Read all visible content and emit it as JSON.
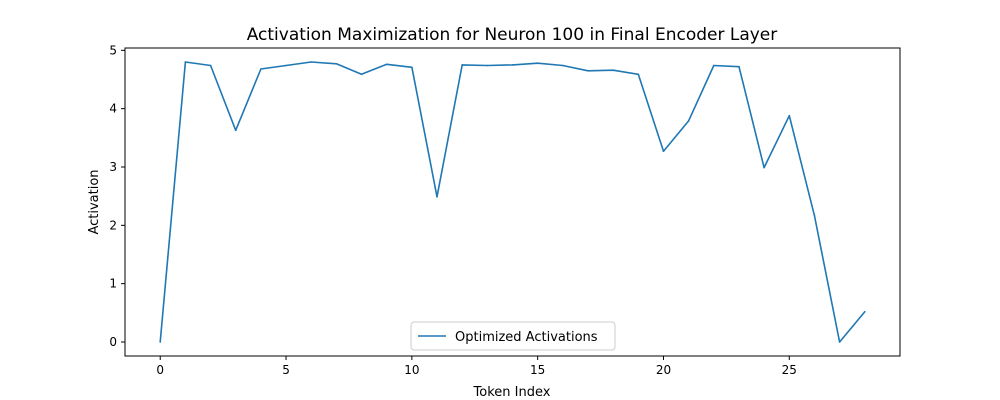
{
  "chart_data": {
    "type": "line",
    "title": "Activation Maximization for Neuron 100 in Final Encoder Layer",
    "xlabel": "Token Index",
    "ylabel": "Activation",
    "xlim": [
      -1.4,
      29.4
    ],
    "ylim": [
      -0.24,
      5.04
    ],
    "xticks": [
      0,
      5,
      10,
      15,
      20,
      25
    ],
    "yticks": [
      0,
      1,
      2,
      3,
      4,
      5
    ],
    "grid": false,
    "legend_position": "lower center",
    "series": [
      {
        "name": "Optimized Activations",
        "color": "#1f77b4",
        "x": [
          0,
          1,
          2,
          3,
          4,
          5,
          6,
          7,
          8,
          9,
          10,
          11,
          12,
          13,
          14,
          15,
          16,
          17,
          18,
          19,
          20,
          21,
          22,
          23,
          24,
          25,
          26,
          27,
          28
        ],
        "values": [
          0.0,
          4.8,
          4.74,
          3.63,
          4.68,
          4.74,
          4.8,
          4.77,
          4.59,
          4.76,
          4.71,
          2.49,
          4.75,
          4.74,
          4.75,
          4.78,
          4.74,
          4.65,
          4.66,
          4.59,
          3.27,
          3.79,
          4.74,
          4.72,
          2.99,
          3.88,
          2.17,
          0.0,
          0.52
        ]
      }
    ]
  }
}
